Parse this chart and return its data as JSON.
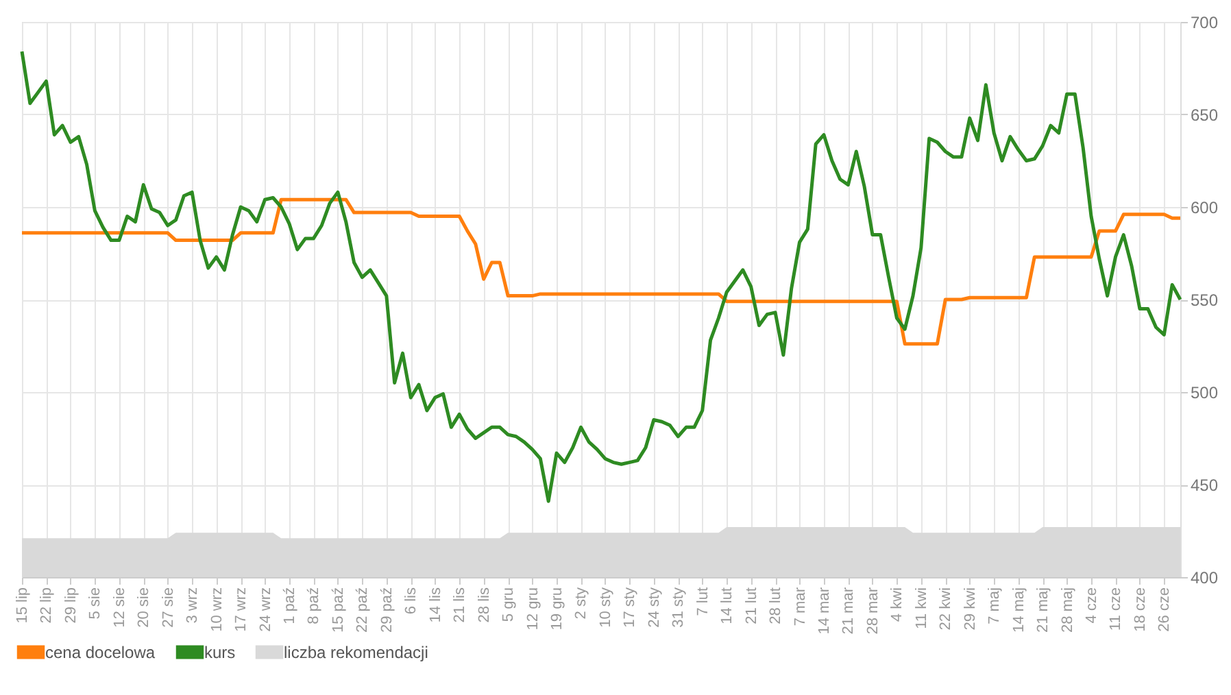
{
  "chart_data": {
    "type": "line",
    "categories": [
      "15 lip",
      null,
      null,
      "22 lip",
      null,
      null,
      "29 lip",
      null,
      null,
      "5 sie",
      null,
      null,
      "12 sie",
      null,
      null,
      "20 sie",
      null,
      null,
      "27 sie",
      null,
      null,
      "3 wrz",
      null,
      null,
      "10 wrz",
      null,
      null,
      "17 wrz",
      null,
      null,
      "24 wrz",
      null,
      null,
      "1 paź",
      null,
      null,
      "8 paź",
      null,
      null,
      "15 paź",
      null,
      null,
      "22 paź",
      null,
      null,
      "29 paź",
      null,
      null,
      "6 lis",
      null,
      null,
      "14 lis",
      null,
      null,
      "21 lis",
      null,
      null,
      "28 lis",
      null,
      null,
      "5 gru",
      null,
      null,
      "12 gru",
      null,
      null,
      "19 gru",
      null,
      null,
      "2 sty",
      null,
      null,
      "10 sty",
      null,
      null,
      "17 sty",
      null,
      null,
      "24 sty",
      null,
      null,
      "31 sty",
      null,
      null,
      "7 lut",
      null,
      null,
      "14 lut",
      null,
      null,
      "21 lut",
      null,
      null,
      "28 lut",
      null,
      null,
      "7 mar",
      null,
      null,
      "14 mar",
      null,
      null,
      "21 mar",
      null,
      null,
      "28 mar",
      null,
      null,
      "4 kwi",
      null,
      null,
      "11 kwi",
      null,
      null,
      "22 kwi",
      null,
      null,
      "29 kwi",
      null,
      null,
      "7 maj",
      null,
      null,
      "14 maj",
      null,
      null,
      "21 maj",
      null,
      null,
      "28 maj",
      null,
      null,
      "4 cze",
      null,
      null,
      "11 cze",
      null,
      null,
      "18 cze",
      null,
      null,
      "26 cze",
      null,
      null
    ],
    "series": [
      {
        "name": "cena docelowa",
        "type": "line",
        "color": "#ff7f0e",
        "values": [
          586,
          586,
          586,
          586,
          586,
          586,
          586,
          586,
          586,
          586,
          586,
          586,
          586,
          586,
          586,
          586,
          586,
          586,
          586,
          582,
          582,
          582,
          582,
          582,
          582,
          582,
          582,
          586,
          586,
          586,
          586,
          586,
          604,
          604,
          604,
          604,
          604,
          604,
          604,
          604,
          604,
          597,
          597,
          597,
          597,
          597,
          597,
          597,
          597,
          595,
          595,
          595,
          595,
          595,
          595,
          587,
          580,
          561,
          570,
          570,
          552,
          552,
          552,
          552,
          553,
          553,
          553,
          553,
          553,
          553,
          553,
          553,
          553,
          553,
          553,
          553,
          553,
          553,
          553,
          553,
          553,
          553,
          553,
          553,
          553,
          553,
          553,
          549,
          549,
          549,
          549,
          549,
          549,
          549,
          549,
          549,
          549,
          549,
          549,
          549,
          549,
          549,
          549,
          549,
          549,
          549,
          549,
          549,
          549,
          526,
          526,
          526,
          526,
          526,
          550,
          550,
          550,
          551,
          551,
          551,
          551,
          551,
          551,
          551,
          551,
          573,
          573,
          573,
          573,
          573,
          573,
          573,
          573,
          587,
          587,
          587,
          596,
          596,
          596,
          596,
          596,
          596,
          594,
          594
        ]
      },
      {
        "name": "kurs",
        "type": "line",
        "color": "#2e8b22",
        "values": [
          684,
          656,
          662,
          668,
          639,
          644,
          635,
          638,
          623,
          598,
          589,
          582,
          582,
          595,
          592,
          612,
          599,
          597,
          590,
          593,
          606,
          608,
          582,
          567,
          573,
          566,
          585,
          600,
          598,
          592,
          604,
          605,
          600,
          591,
          577,
          583,
          583,
          590,
          602,
          608,
          592,
          570,
          562,
          566,
          559,
          552,
          505,
          521,
          497,
          504,
          490,
          497,
          499,
          481,
          488,
          480,
          475,
          478,
          481,
          481,
          477,
          476,
          473,
          469,
          464,
          441,
          467,
          462,
          470,
          481,
          473,
          469,
          464,
          462,
          461,
          462,
          463,
          470,
          485,
          484,
          482,
          476,
          481,
          481,
          490,
          528,
          540,
          554,
          560,
          566,
          557,
          536,
          542,
          543,
          520,
          556,
          581,
          588,
          634,
          639,
          625,
          615,
          612,
          630,
          611,
          585,
          585,
          562,
          540,
          534,
          552,
          578,
          637,
          635,
          630,
          627,
          627,
          648,
          636,
          666,
          640,
          625,
          638,
          631,
          625,
          626,
          633,
          644,
          640,
          661,
          661,
          632,
          595,
          572,
          552,
          573,
          585,
          568,
          545,
          545,
          535,
          531,
          558,
          550
        ]
      },
      {
        "name": "liczba rekomendacji",
        "type": "area",
        "color": "#d9d9d9",
        "values": [
          421,
          421,
          421,
          421,
          421,
          421,
          421,
          421,
          421,
          421,
          421,
          421,
          421,
          421,
          421,
          421,
          421,
          421,
          421,
          424,
          424,
          424,
          424,
          424,
          424,
          424,
          424,
          424,
          424,
          424,
          424,
          424,
          421,
          421,
          421,
          421,
          421,
          421,
          421,
          421,
          421,
          421,
          421,
          421,
          421,
          421,
          421,
          421,
          421,
          421,
          421,
          421,
          421,
          421,
          421,
          421,
          421,
          421,
          421,
          421,
          424,
          424,
          424,
          424,
          424,
          424,
          424,
          424,
          424,
          424,
          424,
          424,
          424,
          424,
          424,
          424,
          424,
          424,
          424,
          424,
          424,
          424,
          424,
          424,
          424,
          424,
          424,
          427,
          427,
          427,
          427,
          427,
          427,
          427,
          427,
          427,
          427,
          427,
          427,
          427,
          427,
          427,
          427,
          427,
          427,
          427,
          427,
          427,
          427,
          427,
          424,
          424,
          424,
          424,
          424,
          424,
          424,
          424,
          424,
          424,
          424,
          424,
          424,
          424,
          424,
          424,
          427,
          427,
          427,
          427,
          427,
          427,
          427,
          427,
          427,
          427,
          427,
          427,
          427,
          427,
          427,
          427,
          427,
          427
        ]
      }
    ],
    "ylim": [
      400,
      700
    ],
    "yticks": [
      400,
      450,
      500,
      550,
      600,
      650,
      700
    ],
    "grid": true,
    "legend": "bottom",
    "marker": "none",
    "line_style": "solid"
  }
}
